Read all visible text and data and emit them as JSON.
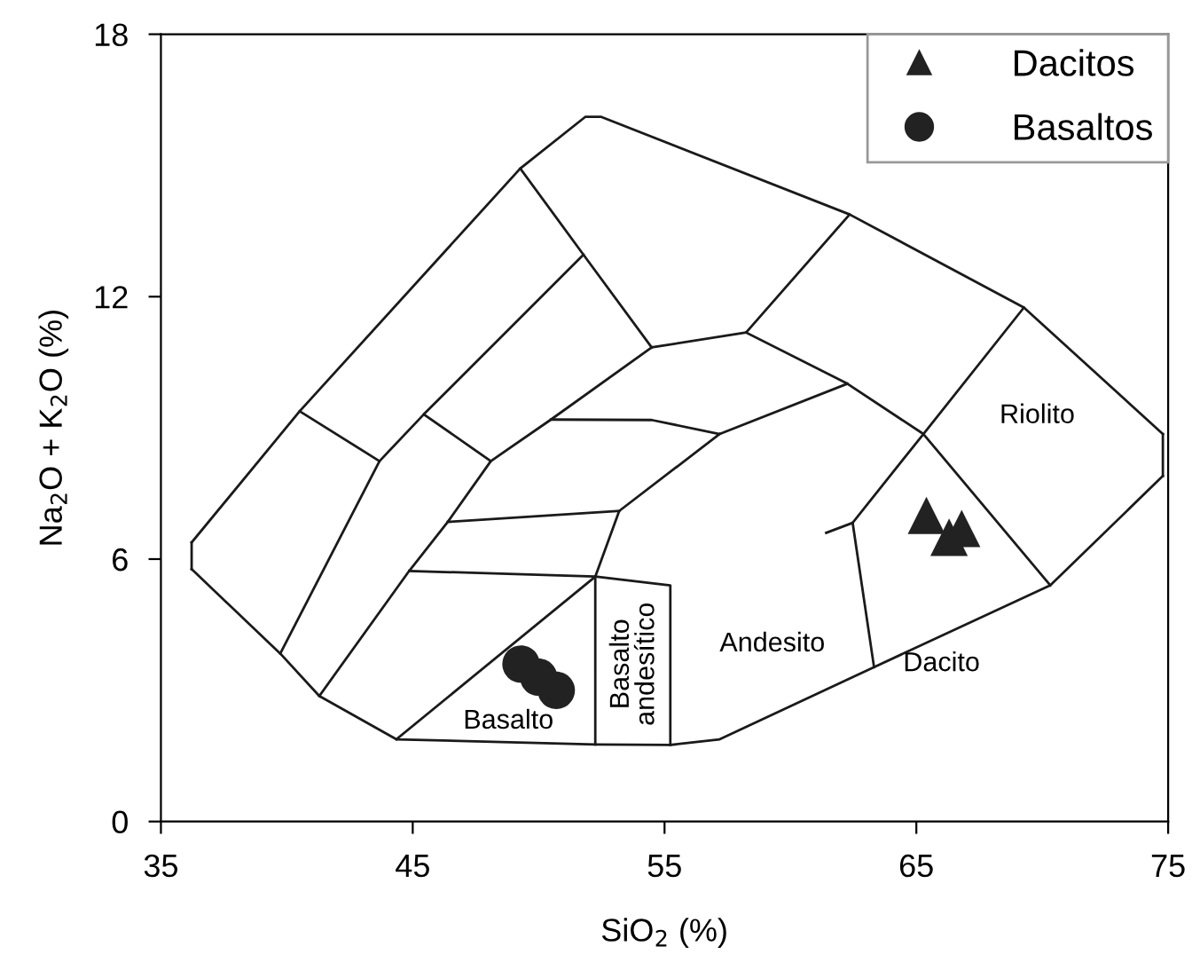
{
  "chart_data": {
    "type": "scatter",
    "xlabel": "SiO$_{2}$ (%)",
    "ylabel": "Na$_{2}$O + K$_{2}$O (%)",
    "xlim": [
      35,
      75
    ],
    "ylim": [
      0,
      18
    ],
    "xticks": [
      35,
      45,
      55,
      65,
      75
    ],
    "yticks": [
      0,
      6,
      12,
      18
    ],
    "grid": false,
    "legend": "top right",
    "series": [
      {
        "type": "line",
        "color": "#1a1a1a",
        "marker": "none",
        "x": [
          36.22,
          40.51,
          49.27,
          51.85,
          52.49,
          62.35,
          69.27,
          74.79
        ],
        "values": [
          6.38,
          9.38,
          14.93,
          16.11,
          16.11,
          13.88,
          11.75,
          8.86
        ]
      },
      {
        "type": "line",
        "color": "#1a1a1a",
        "marker": "none",
        "x": [
          74.79,
          74.79
        ],
        "values": [
          8.86,
          7.9
        ]
      },
      {
        "type": "line",
        "color": "#1a1a1a",
        "marker": "none",
        "x": [
          36.22,
          39.74,
          41.29,
          44.35,
          52.25,
          55.23,
          57.19,
          63.32,
          70.32,
          74.79
        ],
        "values": [
          5.77,
          3.84,
          2.87,
          1.88,
          1.76,
          1.75,
          1.88,
          3.53,
          5.4,
          7.9
        ]
      },
      {
        "type": "line",
        "color": "#1a1a1a",
        "marker": "none",
        "x": [
          36.22,
          36.22
        ],
        "values": [
          5.77,
          6.38
        ]
      },
      {
        "type": "line",
        "color": "#1a1a1a",
        "marker": "none",
        "x": [
          40.51,
          43.68
        ],
        "values": [
          9.38,
          8.24
        ]
      },
      {
        "type": "line",
        "color": "#1a1a1a",
        "marker": "none",
        "x": [
          39.74,
          43.68,
          45.44,
          51.78
        ],
        "values": [
          3.84,
          8.24,
          9.31,
          12.96
        ]
      },
      {
        "type": "line",
        "color": "#1a1a1a",
        "marker": "none",
        "x": [
          45.44,
          48.1
        ],
        "values": [
          9.31,
          8.24
        ]
      },
      {
        "type": "line",
        "color": "#1a1a1a",
        "marker": "none",
        "x": [
          41.29,
          44.86,
          46.39,
          48.1,
          50.49,
          54.49
        ],
        "values": [
          2.87,
          5.73,
          6.85,
          8.24,
          9.19,
          10.84
        ]
      },
      {
        "type": "line",
        "color": "#1a1a1a",
        "marker": "none",
        "x": [
          49.27,
          51.78,
          54.49
        ],
        "values": [
          14.93,
          12.96,
          10.84
        ]
      },
      {
        "type": "line",
        "color": "#1a1a1a",
        "marker": "none",
        "x": [
          54.49,
          58.24,
          62.35
        ],
        "values": [
          10.84,
          11.18,
          13.88
        ]
      },
      {
        "type": "line",
        "color": "#1a1a1a",
        "marker": "none",
        "x": [
          58.24,
          62.26,
          65.28,
          70.32
        ],
        "values": [
          11.18,
          10.01,
          8.86,
          5.4
        ]
      },
      {
        "type": "line",
        "color": "#1a1a1a",
        "marker": "none",
        "x": [
          62.47,
          65.28,
          69.27
        ],
        "values": [
          6.83,
          8.86,
          11.75
        ]
      },
      {
        "type": "line",
        "color": "#1a1a1a",
        "marker": "none",
        "x": [
          62.47,
          63.32
        ],
        "values": [
          6.83,
          3.53
        ]
      },
      {
        "type": "line",
        "color": "#1a1a1a",
        "marker": "none",
        "x": [
          61.42,
          62.47
        ],
        "values": [
          6.6,
          6.83
        ]
      },
      {
        "type": "line",
        "color": "#1a1a1a",
        "marker": "none",
        "x": [
          50.49,
          54.49,
          57.19,
          62.26
        ],
        "values": [
          9.19,
          9.18,
          8.86,
          10.01
        ]
      },
      {
        "type": "line",
        "color": "#1a1a1a",
        "marker": "none",
        "x": [
          52.25,
          52.25,
          53.2,
          57.19
        ],
        "values": [
          1.76,
          5.6,
          7.1,
          8.86
        ]
      },
      {
        "type": "line",
        "color": "#1a1a1a",
        "marker": "none",
        "x": [
          46.39,
          53.2
        ],
        "values": [
          6.85,
          7.1
        ]
      },
      {
        "type": "line",
        "color": "#1a1a1a",
        "marker": "none",
        "x": [
          44.86,
          52.25,
          55.23,
          55.23
        ],
        "values": [
          5.73,
          5.6,
          5.4,
          1.75
        ]
      },
      {
        "type": "line",
        "color": "#1a1a1a",
        "marker": "none",
        "x": [
          44.35,
          52.25
        ],
        "values": [
          1.88,
          5.6
        ]
      },
      {
        "name": "Dacitos",
        "color": "#222222",
        "marker": "triangle",
        "x": [
          65.4,
          66.3,
          66.8
        ],
        "values": [
          7.0,
          6.5,
          6.7
        ]
      },
      {
        "name": "Basaltos",
        "color": "#222222",
        "marker": "circle",
        "x": [
          49.3,
          50.0,
          50.7
        ],
        "values": [
          3.6,
          3.3,
          3.0
        ]
      }
    ],
    "annotations": [
      "Riolito",
      "Dacito",
      "Andesito",
      "Basalto",
      "Basalto\nandesítico"
    ]
  }
}
